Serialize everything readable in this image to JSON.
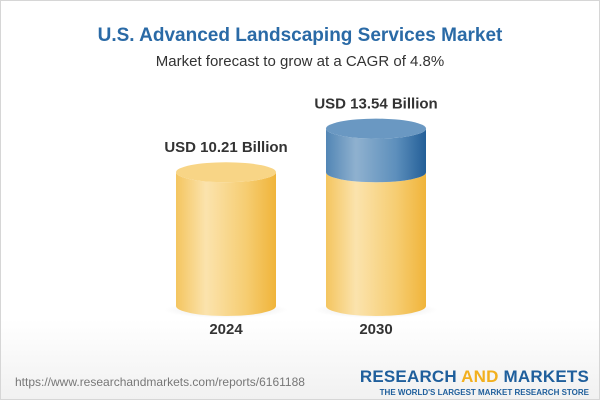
{
  "title": "U.S. Advanced Landscaping Services Market",
  "subtitle": "Market forecast to grow at a CAGR of 4.8%",
  "chart_data": {
    "type": "bar",
    "style": "3d-cylinder",
    "categories": [
      "2024",
      "2030"
    ],
    "values": [
      10.21,
      13.54
    ],
    "data_labels": [
      "USD 10.21 Billion",
      "USD 13.54 Billion"
    ],
    "unit": "USD Billion",
    "colors": {
      "base": "#f4c35a",
      "growth": "#3f7fb2"
    }
  },
  "footer": {
    "url": "https://www.researchandmarkets.com/reports/6161188",
    "logo_part1": "RESEARCH ",
    "logo_part2": "AND",
    "logo_part3": " MARKETS",
    "tagline": "THE WORLD'S LARGEST MARKET RESEARCH STORE"
  }
}
